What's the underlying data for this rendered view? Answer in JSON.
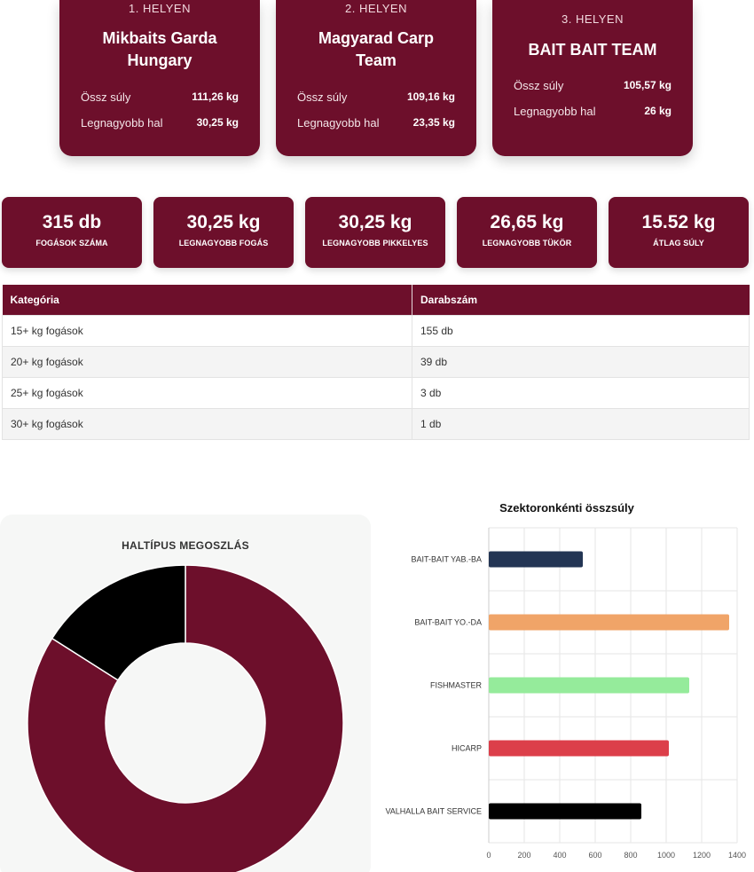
{
  "podium": [
    {
      "place": "1. HELYEN",
      "team_line1": "Mikbaits Garda",
      "team_line2": "Hungary",
      "total_label": "Össz súly",
      "total_value": "111,26 kg",
      "biggest_label": "Legnagyobb hal",
      "biggest_value": "30,25 kg"
    },
    {
      "place": "2. HELYEN",
      "team_line1": "Magyarad Carp",
      "team_line2": "Team",
      "total_label": "Össz súly",
      "total_value": "109,16 kg",
      "biggest_label": "Legnagyobb hal",
      "biggest_value": "23,35 kg"
    },
    {
      "place": "3. HELYEN",
      "team_line1": "BAIT BAIT TEAM",
      "team_line2": "",
      "total_label": "Össz súly",
      "total_value": "105,57 kg",
      "biggest_label": "Legnagyobb hal",
      "biggest_value": "26 kg"
    }
  ],
  "stats": [
    {
      "value": "315 db",
      "label": "FOGÁSOK SZÁMA"
    },
    {
      "value": "30,25 kg",
      "label": "LEGNAGYOBB FOGÁS"
    },
    {
      "value": "30,25 kg",
      "label": "LEGNAGYOBB PIKKELYES"
    },
    {
      "value": "26,65 kg",
      "label": "LEGNAGYOBB TÜKÖR"
    },
    {
      "value": "15.52 kg",
      "label": "ÁTLAG SÚLY"
    }
  ],
  "category_table": {
    "headers": [
      "Kategória",
      "Darabszám"
    ],
    "rows": [
      [
        "15+ kg fogások",
        "155 db"
      ],
      [
        "20+ kg fogások",
        "39 db"
      ],
      [
        "25+ kg fogások",
        "3 db"
      ],
      [
        "30+ kg fogások",
        "1 db"
      ]
    ]
  },
  "colors": {
    "brand": "#6d0f2b"
  },
  "chart_data": [
    {
      "type": "pie",
      "title": "HALTÍPUS MEGOSZLÁS",
      "donut": true,
      "slices": [
        {
          "value": 84,
          "color": "#6d0f2b"
        },
        {
          "value": 16,
          "color": "#000000"
        }
      ]
    },
    {
      "type": "bar",
      "orientation": "horizontal",
      "title": "Szektoronkénti összsúly",
      "categories": [
        "BAIT-BAIT YAB.-BA",
        "BAIT-BAIT YO.-DA",
        "FISHMASTER",
        "HICARP",
        "VALHALLA BAIT SERVICE"
      ],
      "values": [
        530,
        1355,
        1130,
        1015,
        860
      ],
      "colors": [
        "#233554",
        "#f0a468",
        "#95eb9b",
        "#dc3f4a",
        "#000000"
      ],
      "xlim": [
        0,
        1400
      ],
      "xticks": [
        0,
        200,
        400,
        600,
        800,
        1000,
        1200,
        1400
      ],
      "grid": true
    }
  ]
}
